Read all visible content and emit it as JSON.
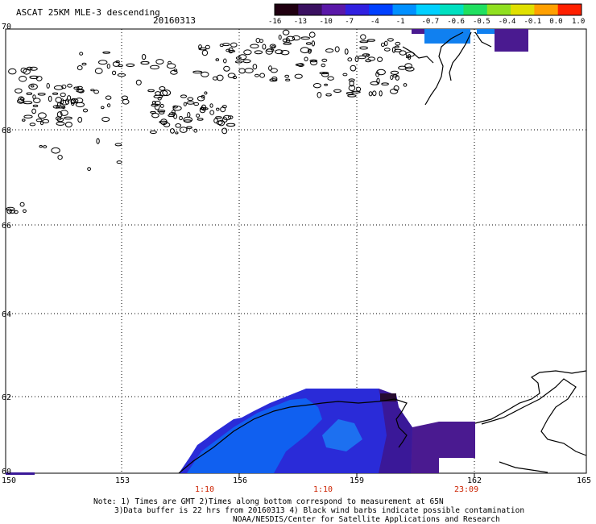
{
  "header": {
    "title": "ASCAT 25KM MLE-3 descending",
    "date": "20160313"
  },
  "colorbar": {
    "tick_labels": [
      "-16",
      "-13",
      "-10",
      "-7",
      "-4",
      "-1",
      "-0.7",
      "-0.6",
      "-0.5",
      "-0.4",
      "-0.1",
      "0.0",
      "1.0"
    ],
    "colors": [
      "#200010",
      "#3a1060",
      "#5a18a8",
      "#3020e0",
      "#0040ff",
      "#0090ff",
      "#00d0ff",
      "#00e0c0",
      "#20e060",
      "#90e020",
      "#e0e000",
      "#ffa000",
      "#ff2000"
    ]
  },
  "axes": {
    "latitude_labels": [
      "70",
      "68",
      "66",
      "64",
      "62",
      "60"
    ],
    "longitude_labels": [
      "150",
      "153",
      "156",
      "159",
      "162",
      "165"
    ],
    "time_labels": [
      "1:10",
      "1:10",
      "23:09"
    ]
  },
  "footer": {
    "line1": "Note: 1) Times are GMT 2)Times along bottom correspond to measurement at 65N",
    "line2": "3)Data buffer is 22 hrs from 20160313 4) Black wind barbs indicate possible contamination",
    "line3": "NOAA/NESDIS/Center for Satellite Applications and Research"
  }
}
